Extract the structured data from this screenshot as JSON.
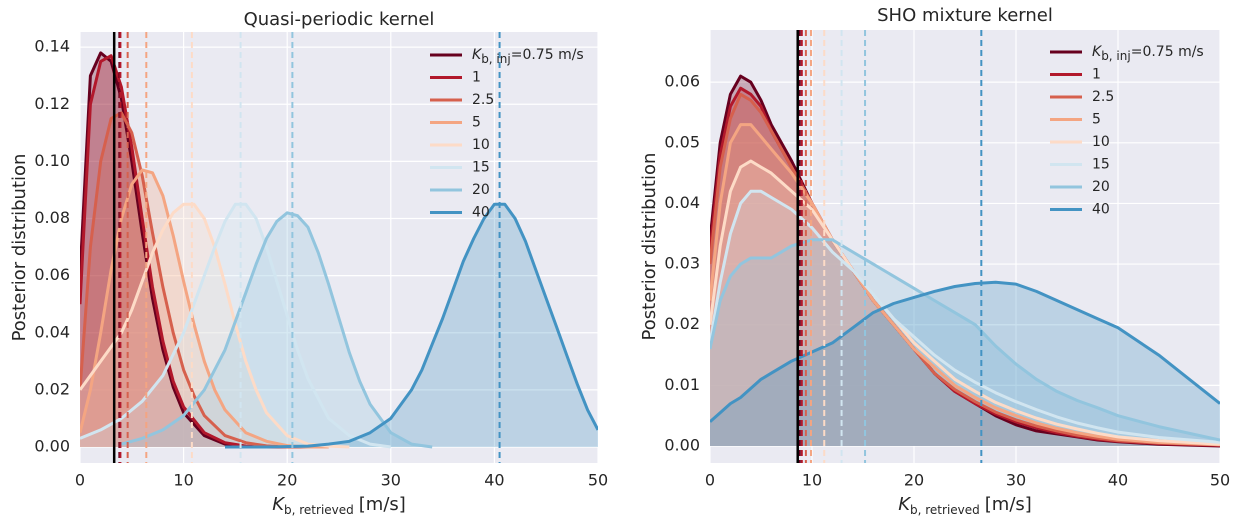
{
  "chart_data": [
    {
      "type": "line",
      "title": "Quasi-periodic kernel",
      "ylabel": "Posterior distribution",
      "xlabel": {
        "main": "K",
        "sub": "b, retrieved",
        "unit": "[m/s]"
      },
      "xlim": [
        0,
        50
      ],
      "ylim": [
        -0.0056,
        0.1453
      ],
      "grid": true,
      "legend": "upper right",
      "reference_line": 3.3,
      "xticks": [
        0,
        10,
        20,
        30,
        40,
        50
      ],
      "yticks": [
        {
          "value": 0,
          "label": "0.00"
        },
        {
          "value": 0.02,
          "label": "0.02"
        },
        {
          "value": 0.04,
          "label": "0.04"
        },
        {
          "value": 0.06,
          "label": "0.06"
        },
        {
          "value": 0.08,
          "label": "0.08"
        },
        {
          "value": 0.1,
          "label": "0.10"
        },
        {
          "value": 0.12,
          "label": "0.12"
        },
        {
          "value": 0.14,
          "label": "0.14"
        }
      ],
      "series": [
        {
          "name": "K",
          "name_sub": "b, inj",
          "name_suffix": "=0.75 m/s",
          "color": "#67001f",
          "median": 3.8,
          "x": [
            0,
            1,
            2,
            3,
            4,
            5,
            6,
            7,
            8,
            9,
            10,
            12,
            14,
            16,
            18,
            20,
            22
          ],
          "values": [
            0.06,
            0.13,
            0.138,
            0.135,
            0.122,
            0.1,
            0.075,
            0.052,
            0.034,
            0.021,
            0.012,
            0.004,
            0.001,
            0,
            0,
            0,
            0
          ]
        },
        {
          "name": "1",
          "color": "#b2182b",
          "median": 3.9,
          "x": [
            0,
            1,
            2,
            3,
            4,
            5,
            6,
            7,
            8,
            9,
            10,
            12,
            14,
            16,
            18,
            20,
            22
          ],
          "values": [
            0.05,
            0.12,
            0.135,
            0.137,
            0.126,
            0.105,
            0.08,
            0.056,
            0.037,
            0.023,
            0.014,
            0.005,
            0.0015,
            0.0003,
            0,
            0,
            0
          ]
        },
        {
          "name": "2.5",
          "color": "#d6604d",
          "median": 4.6,
          "x": [
            0,
            1,
            2,
            3,
            4,
            5,
            6,
            7,
            8,
            9,
            10,
            11,
            12,
            14,
            16,
            18,
            20,
            22,
            24
          ],
          "values": [
            0.02,
            0.07,
            0.1,
            0.115,
            0.117,
            0.11,
            0.095,
            0.075,
            0.056,
            0.04,
            0.027,
            0.018,
            0.011,
            0.004,
            0.0015,
            0.0004,
            0,
            0,
            0
          ]
        },
        {
          "name": "5",
          "color": "#f4a582",
          "median": 6.4,
          "x": [
            0,
            1,
            2,
            3,
            4,
            5,
            6,
            7,
            8,
            9,
            10,
            11,
            12,
            13,
            14,
            16,
            18,
            20,
            22,
            24
          ],
          "values": [
            0.005,
            0.02,
            0.04,
            0.062,
            0.08,
            0.092,
            0.097,
            0.096,
            0.088,
            0.074,
            0.058,
            0.043,
            0.03,
            0.02,
            0.013,
            0.005,
            0.002,
            0.0005,
            0,
            0
          ]
        },
        {
          "name": "10",
          "color": "#fddbc7",
          "median": 10.8,
          "x": [
            0,
            2,
            4,
            5,
            6,
            7,
            8,
            9,
            10,
            11,
            12,
            13,
            14,
            15,
            16,
            17,
            18,
            20,
            22,
            24,
            26
          ],
          "values": [
            0.02,
            0.03,
            0.04,
            0.048,
            0.058,
            0.068,
            0.076,
            0.082,
            0.085,
            0.085,
            0.08,
            0.07,
            0.057,
            0.043,
            0.03,
            0.02,
            0.012,
            0.004,
            0.001,
            0.0003,
            0
          ]
        },
        {
          "name": "15",
          "color": "#d1e5f0",
          "median": 15.5,
          "x": [
            0,
            2,
            4,
            6,
            8,
            10,
            11,
            12,
            13,
            14,
            15,
            16,
            17,
            18,
            19,
            20,
            21,
            22,
            24,
            26,
            28,
            30
          ],
          "values": [
            0.003,
            0.006,
            0.01,
            0.016,
            0.025,
            0.04,
            0.05,
            0.06,
            0.07,
            0.079,
            0.085,
            0.085,
            0.08,
            0.07,
            0.058,
            0.046,
            0.034,
            0.024,
            0.01,
            0.004,
            0.001,
            0
          ]
        },
        {
          "name": "20",
          "color": "#92c5de",
          "median": 20.5,
          "x": [
            4,
            6,
            8,
            10,
            12,
            14,
            15,
            16,
            17,
            18,
            19,
            20,
            21,
            22,
            23,
            24,
            25,
            26,
            27,
            28,
            30,
            32,
            34
          ],
          "values": [
            0.001,
            0.003,
            0.006,
            0.011,
            0.02,
            0.034,
            0.044,
            0.054,
            0.064,
            0.073,
            0.079,
            0.082,
            0.081,
            0.077,
            0.068,
            0.057,
            0.045,
            0.033,
            0.023,
            0.015,
            0.005,
            0.001,
            0
          ]
        },
        {
          "name": "40",
          "color": "#4393c3",
          "median": 40.5,
          "x": [
            14,
            18,
            22,
            24,
            26,
            28,
            30,
            32,
            33,
            34,
            35,
            36,
            37,
            38,
            39,
            40,
            41,
            42,
            43,
            44,
            45,
            46,
            47,
            48,
            49,
            50
          ],
          "values": [
            0,
            0,
            0.0003,
            0.001,
            0.002,
            0.005,
            0.01,
            0.02,
            0.027,
            0.036,
            0.045,
            0.055,
            0.065,
            0.073,
            0.08,
            0.085,
            0.085,
            0.08,
            0.072,
            0.062,
            0.052,
            0.042,
            0.032,
            0.022,
            0.013,
            0.006
          ]
        }
      ]
    },
    {
      "type": "line",
      "title": "SHO mixture kernel",
      "ylabel": "Posterior distribution",
      "xlabel": {
        "main": "K",
        "sub": "b, retrieved",
        "unit": "[m/s]"
      },
      "xlim": [
        0,
        50
      ],
      "ylim": [
        -0.0028,
        0.0686
      ],
      "grid": true,
      "legend": "upper right",
      "reference_line": 8.6,
      "xticks": [
        0,
        10,
        20,
        30,
        40,
        50
      ],
      "yticks": [
        {
          "value": 0,
          "label": "0.00"
        },
        {
          "value": 0.01,
          "label": "0.01"
        },
        {
          "value": 0.02,
          "label": "0.02"
        },
        {
          "value": 0.03,
          "label": "0.03"
        },
        {
          "value": 0.04,
          "label": "0.04"
        },
        {
          "value": 0.05,
          "label": "0.05"
        },
        {
          "value": 0.06,
          "label": "0.06"
        }
      ],
      "series": [
        {
          "name": "K",
          "name_sub": "b, inj",
          "name_suffix": "=0.75 m/s",
          "color": "#67001f",
          "median": 8.8,
          "x": [
            0,
            1,
            2,
            3,
            4,
            5,
            6,
            8,
            10,
            12,
            14,
            16,
            18,
            20,
            22,
            24,
            26,
            28,
            30,
            32,
            34,
            36,
            38,
            40,
            44,
            50
          ],
          "values": [
            0.034,
            0.05,
            0.058,
            0.061,
            0.06,
            0.057,
            0.053,
            0.047,
            0.04,
            0.034,
            0.029,
            0.024,
            0.02,
            0.016,
            0.012,
            0.009,
            0.007,
            0.005,
            0.0035,
            0.0025,
            0.002,
            0.0015,
            0.001,
            0.0007,
            0.0003,
            0
          ]
        },
        {
          "name": "1",
          "color": "#b2182b",
          "median": 9.0,
          "x": [
            0,
            1,
            2,
            3,
            4,
            5,
            6,
            8,
            10,
            12,
            14,
            16,
            18,
            20,
            22,
            24,
            26,
            28,
            30,
            32,
            34,
            36,
            38,
            40,
            44,
            50
          ],
          "values": [
            0.032,
            0.048,
            0.056,
            0.059,
            0.058,
            0.056,
            0.052,
            0.046,
            0.04,
            0.034,
            0.029,
            0.024,
            0.02,
            0.016,
            0.012,
            0.009,
            0.007,
            0.0053,
            0.004,
            0.003,
            0.0022,
            0.0016,
            0.0011,
            0.0008,
            0.0004,
            0.0001
          ]
        },
        {
          "name": "2.5",
          "color": "#d6604d",
          "median": 9.4,
          "x": [
            0,
            1,
            2,
            3,
            4,
            5,
            6,
            8,
            10,
            12,
            14,
            16,
            18,
            20,
            22,
            24,
            26,
            28,
            30,
            32,
            34,
            36,
            38,
            40,
            44,
            50
          ],
          "values": [
            0.03,
            0.046,
            0.054,
            0.058,
            0.057,
            0.055,
            0.052,
            0.046,
            0.04,
            0.034,
            0.029,
            0.024,
            0.02,
            0.016,
            0.012,
            0.0093,
            0.0073,
            0.0056,
            0.0043,
            0.0033,
            0.0025,
            0.0018,
            0.0013,
            0.0009,
            0.0005,
            0.0002
          ]
        },
        {
          "name": "5",
          "color": "#f4a582",
          "median": 9.9,
          "x": [
            0,
            1,
            2,
            3,
            4,
            5,
            6,
            8,
            10,
            12,
            14,
            16,
            18,
            20,
            22,
            24,
            26,
            28,
            30,
            32,
            34,
            36,
            38,
            40,
            44,
            50
          ],
          "values": [
            0.024,
            0.04,
            0.05,
            0.053,
            0.053,
            0.051,
            0.049,
            0.045,
            0.04,
            0.034,
            0.029,
            0.024,
            0.02,
            0.016,
            0.013,
            0.01,
            0.008,
            0.0063,
            0.005,
            0.0038,
            0.0029,
            0.0022,
            0.0016,
            0.0011,
            0.0006,
            0.0002
          ]
        },
        {
          "name": "10",
          "color": "#fddbc7",
          "median": 11.2,
          "x": [
            0,
            1,
            2,
            3,
            4,
            5,
            6,
            8,
            10,
            12,
            14,
            16,
            18,
            20,
            22,
            24,
            26,
            28,
            30,
            32,
            34,
            36,
            38,
            40,
            44,
            50
          ],
          "values": [
            0.02,
            0.033,
            0.042,
            0.046,
            0.047,
            0.046,
            0.045,
            0.042,
            0.039,
            0.034,
            0.029,
            0.025,
            0.021,
            0.017,
            0.014,
            0.011,
            0.009,
            0.0072,
            0.0058,
            0.0046,
            0.0036,
            0.0028,
            0.0021,
            0.0015,
            0.0009,
            0.0003
          ]
        },
        {
          "name": "15",
          "color": "#d1e5f0",
          "median": 12.9,
          "x": [
            0,
            1,
            2,
            3,
            4,
            5,
            6,
            8,
            10,
            12,
            14,
            16,
            18,
            20,
            22,
            24,
            26,
            28,
            30,
            32,
            34,
            36,
            38,
            40,
            44,
            50
          ],
          "values": [
            0.017,
            0.027,
            0.035,
            0.04,
            0.042,
            0.042,
            0.041,
            0.039,
            0.036,
            0.032,
            0.029,
            0.025,
            0.021,
            0.018,
            0.015,
            0.0125,
            0.0105,
            0.0088,
            0.0073,
            0.006,
            0.0048,
            0.0038,
            0.003,
            0.0023,
            0.0014,
            0.0006
          ]
        },
        {
          "name": "20",
          "color": "#92c5de",
          "median": 15.2,
          "x": [
            0,
            1,
            2,
            3,
            4,
            5,
            6,
            8,
            10,
            12,
            14,
            16,
            18,
            20,
            22,
            24,
            26,
            28,
            30,
            32,
            34,
            36,
            38,
            40,
            44,
            50
          ],
          "values": [
            0.016,
            0.024,
            0.028,
            0.03,
            0.031,
            0.031,
            0.031,
            0.033,
            0.034,
            0.034,
            0.032,
            0.03,
            0.028,
            0.026,
            0.024,
            0.022,
            0.02,
            0.0165,
            0.0135,
            0.011,
            0.009,
            0.0075,
            0.0063,
            0.005,
            0.0032,
            0.001
          ]
        },
        {
          "name": "40",
          "color": "#4393c3",
          "median": 26.6,
          "x": [
            0,
            1,
            2,
            3,
            4,
            5,
            6,
            8,
            10,
            12,
            14,
            16,
            18,
            20,
            22,
            24,
            26,
            28,
            30,
            32,
            34,
            36,
            38,
            40,
            44,
            50
          ],
          "values": [
            0.004,
            0.0055,
            0.007,
            0.008,
            0.0095,
            0.011,
            0.012,
            0.014,
            0.0155,
            0.017,
            0.0195,
            0.022,
            0.0235,
            0.0245,
            0.0255,
            0.0263,
            0.0268,
            0.027,
            0.0267,
            0.0255,
            0.024,
            0.0225,
            0.021,
            0.0195,
            0.015,
            0.007
          ]
        }
      ]
    }
  ]
}
